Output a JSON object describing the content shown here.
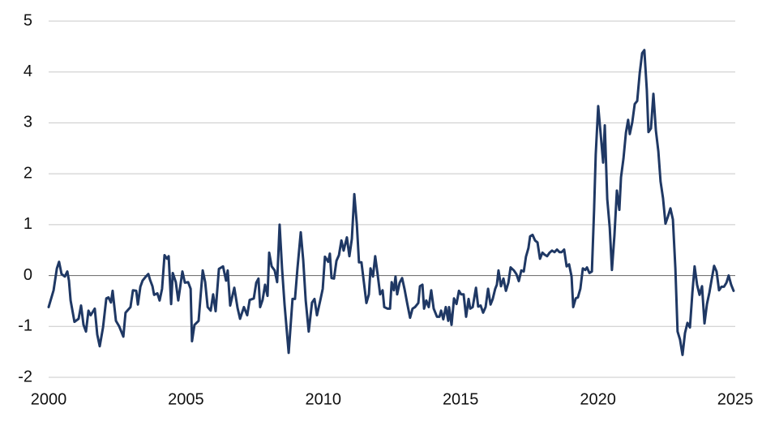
{
  "chart_data": {
    "type": "line",
    "x": [
      2000.0,
      2000.18,
      2000.3,
      2000.38,
      2000.47,
      2000.59,
      2000.68,
      2000.74,
      2000.8,
      2000.94,
      2001.09,
      2001.18,
      2001.27,
      2001.36,
      2001.45,
      2001.53,
      2001.68,
      2001.77,
      2001.86,
      2001.98,
      2002.1,
      2002.18,
      2002.27,
      2002.33,
      2002.45,
      2002.57,
      2002.72,
      2002.8,
      2002.98,
      2003.07,
      2003.19,
      2003.25,
      2003.34,
      2003.42,
      2003.54,
      2003.63,
      2003.69,
      2003.78,
      2003.84,
      2003.96,
      2004.04,
      2004.13,
      2004.22,
      2004.31,
      2004.37,
      2004.46,
      2004.52,
      2004.63,
      2004.72,
      2004.87,
      2004.96,
      2005.08,
      2005.17,
      2005.22,
      2005.31,
      2005.46,
      2005.55,
      2005.61,
      2005.7,
      2005.79,
      2005.9,
      2005.99,
      2006.08,
      2006.2,
      2006.35,
      2006.46,
      2006.52,
      2006.61,
      2006.76,
      2006.88,
      2006.97,
      2007.11,
      2007.23,
      2007.32,
      2007.47,
      2007.56,
      2007.64,
      2007.7,
      2007.79,
      2007.88,
      2007.97,
      2008.03,
      2008.12,
      2008.23,
      2008.32,
      2008.41,
      2008.5,
      2008.59,
      2008.74,
      2008.88,
      2008.97,
      2009.06,
      2009.18,
      2009.27,
      2009.36,
      2009.47,
      2009.59,
      2009.68,
      2009.77,
      2009.89,
      2009.98,
      2010.06,
      2010.18,
      2010.24,
      2010.3,
      2010.39,
      2010.48,
      2010.57,
      2010.66,
      2010.74,
      2010.86,
      2010.95,
      2011.04,
      2011.13,
      2011.22,
      2011.3,
      2011.39,
      2011.48,
      2011.57,
      2011.66,
      2011.72,
      2011.81,
      2011.89,
      2011.98,
      2012.07,
      2012.16,
      2012.22,
      2012.34,
      2012.43,
      2012.49,
      2012.57,
      2012.63,
      2012.69,
      2012.78,
      2012.87,
      2012.96,
      2013.05,
      2013.16,
      2013.25,
      2013.34,
      2013.46,
      2013.52,
      2013.61,
      2013.67,
      2013.75,
      2013.84,
      2013.93,
      2014.02,
      2014.14,
      2014.23,
      2014.29,
      2014.37,
      2014.46,
      2014.55,
      2014.58,
      2014.67,
      2014.76,
      2014.85,
      2014.94,
      2015.02,
      2015.11,
      2015.2,
      2015.29,
      2015.35,
      2015.44,
      2015.56,
      2015.64,
      2015.73,
      2015.82,
      2015.91,
      2016.0,
      2016.09,
      2016.17,
      2016.26,
      2016.32,
      2016.38,
      2016.47,
      2016.56,
      2016.65,
      2016.74,
      2016.82,
      2016.94,
      2017.03,
      2017.12,
      2017.21,
      2017.3,
      2017.38,
      2017.47,
      2017.53,
      2017.62,
      2017.71,
      2017.8,
      2017.89,
      2017.98,
      2018.06,
      2018.15,
      2018.24,
      2018.33,
      2018.42,
      2018.51,
      2018.6,
      2018.68,
      2018.77,
      2018.86,
      2018.95,
      2019.04,
      2019.1,
      2019.19,
      2019.27,
      2019.36,
      2019.45,
      2019.54,
      2019.6,
      2019.69,
      2019.78,
      2019.86,
      2019.92,
      2020.01,
      2020.1,
      2020.19,
      2020.25,
      2020.34,
      2020.43,
      2020.51,
      2020.6,
      2020.69,
      2020.78,
      2020.84,
      2020.93,
      2021.02,
      2021.1,
      2021.16,
      2021.25,
      2021.34,
      2021.43,
      2021.52,
      2021.61,
      2021.69,
      2021.78,
      2021.84,
      2021.93,
      2022.02,
      2022.11,
      2022.2,
      2022.28,
      2022.37,
      2022.46,
      2022.55,
      2022.64,
      2022.73,
      2022.82,
      2022.9,
      2022.99,
      2023.08,
      2023.17,
      2023.26,
      2023.35,
      2023.44,
      2023.52,
      2023.61,
      2023.7,
      2023.79,
      2023.88,
      2023.97,
      2024.06,
      2024.14,
      2024.23,
      2024.32,
      2024.41,
      2024.5,
      2024.59,
      2024.68,
      2024.76,
      2024.85,
      2024.94
    ],
    "series": [
      {
        "color": "#1f3864",
        "values": [
          -0.62,
          -0.29,
          0.14,
          0.27,
          0.03,
          -0.02,
          0.08,
          -0.1,
          -0.49,
          -0.91,
          -0.85,
          -0.59,
          -0.97,
          -1.1,
          -0.69,
          -0.78,
          -0.65,
          -1.16,
          -1.39,
          -1.02,
          -0.45,
          -0.43,
          -0.53,
          -0.3,
          -0.89,
          -1.0,
          -1.2,
          -0.73,
          -0.62,
          -0.29,
          -0.3,
          -0.57,
          -0.22,
          -0.1,
          -0.02,
          0.03,
          -0.08,
          -0.21,
          -0.38,
          -0.35,
          -0.49,
          -0.26,
          0.4,
          0.33,
          0.38,
          -0.56,
          0.05,
          -0.13,
          -0.49,
          0.08,
          -0.14,
          -0.13,
          -0.26,
          -1.29,
          -0.97,
          -0.89,
          -0.29,
          0.1,
          -0.13,
          -0.62,
          -0.69,
          -0.37,
          -0.7,
          0.13,
          0.18,
          -0.1,
          0.1,
          -0.59,
          -0.24,
          -0.64,
          -0.85,
          -0.62,
          -0.78,
          -0.48,
          -0.45,
          -0.14,
          -0.06,
          -0.62,
          -0.48,
          -0.18,
          -0.4,
          0.45,
          0.18,
          0.1,
          -0.13,
          1.0,
          0.13,
          -0.57,
          -1.52,
          -0.46,
          -0.46,
          0.14,
          0.85,
          0.3,
          -0.49,
          -1.1,
          -0.53,
          -0.46,
          -0.78,
          -0.49,
          -0.26,
          0.37,
          0.27,
          0.43,
          -0.05,
          -0.06,
          0.29,
          0.4,
          0.69,
          0.49,
          0.75,
          0.38,
          0.72,
          1.6,
          1.02,
          0.26,
          0.26,
          -0.14,
          -0.54,
          -0.37,
          0.14,
          -0.02,
          0.38,
          0.02,
          -0.37,
          -0.29,
          -0.62,
          -0.65,
          -0.65,
          -0.13,
          -0.29,
          -0.02,
          -0.37,
          -0.14,
          -0.05,
          -0.27,
          -0.53,
          -0.83,
          -0.65,
          -0.62,
          -0.54,
          -0.21,
          -0.18,
          -0.65,
          -0.49,
          -0.62,
          -0.29,
          -0.65,
          -0.81,
          -0.81,
          -0.69,
          -0.86,
          -0.62,
          -0.89,
          -0.62,
          -0.97,
          -0.45,
          -0.56,
          -0.3,
          -0.37,
          -0.37,
          -0.81,
          -0.46,
          -0.65,
          -0.62,
          -0.24,
          -0.61,
          -0.59,
          -0.73,
          -0.62,
          -0.26,
          -0.57,
          -0.46,
          -0.26,
          -0.18,
          0.1,
          -0.21,
          -0.06,
          -0.3,
          -0.14,
          0.16,
          0.1,
          0.03,
          -0.11,
          0.1,
          0.08,
          0.37,
          0.54,
          0.77,
          0.8,
          0.69,
          0.65,
          0.33,
          0.45,
          0.41,
          0.38,
          0.45,
          0.49,
          0.46,
          0.51,
          0.46,
          0.46,
          0.51,
          0.18,
          0.22,
          -0.02,
          -0.62,
          -0.45,
          -0.43,
          -0.26,
          0.14,
          0.11,
          0.16,
          0.05,
          0.08,
          1.29,
          2.38,
          3.33,
          2.78,
          2.22,
          2.95,
          1.5,
          0.94,
          0.11,
          0.78,
          1.67,
          1.29,
          1.93,
          2.3,
          2.81,
          3.06,
          2.78,
          3.01,
          3.37,
          3.43,
          3.97,
          4.37,
          4.43,
          3.65,
          2.82,
          2.89,
          3.57,
          2.85,
          2.44,
          1.85,
          1.52,
          1.02,
          1.16,
          1.32,
          1.1,
          0.14,
          -1.1,
          -1.26,
          -1.56,
          -1.13,
          -0.93,
          -1.02,
          -0.33,
          0.18,
          -0.18,
          -0.38,
          -0.21,
          -0.94,
          -0.56,
          -0.33,
          -0.08,
          0.19,
          0.08,
          -0.29,
          -0.22,
          -0.22,
          -0.14,
          0.0,
          -0.18,
          -0.3
        ]
      }
    ],
    "xlim": [
      2000,
      2025
    ],
    "xticks": [
      2000,
      2005,
      2010,
      2015,
      2020,
      2025
    ],
    "ylim": [
      -2,
      5
    ],
    "yticks": [
      -2,
      -1,
      0,
      1,
      2,
      3,
      4,
      5
    ],
    "grid": true
  }
}
